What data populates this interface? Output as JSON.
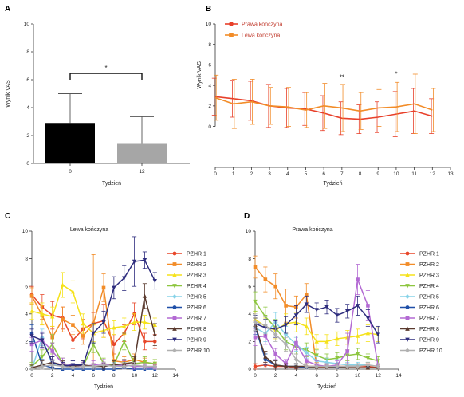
{
  "chart_data": [
    {
      "panel": "A",
      "type": "bar",
      "categories": [
        "0",
        "12"
      ],
      "values": [
        2.9,
        1.4
      ],
      "errors": [
        2.1,
        1.95
      ],
      "colors": [
        "#000000",
        "#a6a6a6"
      ],
      "ylabel": "Wynik VAS",
      "xlabel": "Tydzień",
      "ylim": [
        0,
        10
      ],
      "yticks": [
        "0",
        "2",
        "4",
        "6",
        "8",
        "10"
      ],
      "annotation": "*"
    },
    {
      "panel": "B",
      "type": "line",
      "ylabel": "Wynik VAS",
      "xlabel": "Tydzień",
      "xlim": [
        0,
        13
      ],
      "ylim": [
        -4,
        10
      ],
      "xticks": [
        "0",
        "1",
        "2",
        "3",
        "4",
        "5",
        "6",
        "7",
        "8",
        "9",
        "10",
        "11",
        "12",
        "13"
      ],
      "yticks": [
        "0",
        "2",
        "4",
        "6",
        "8",
        "10"
      ],
      "legend_position": "top-left",
      "annotations": [
        {
          "text": "**",
          "x": 7,
          "y": 4.6
        },
        {
          "text": "*",
          "x": 10,
          "y": 4.9
        }
      ],
      "x": [
        0,
        1,
        2,
        3,
        4,
        5,
        6,
        7,
        8,
        9,
        10,
        11,
        12
      ],
      "series": [
        {
          "name": "Prawa kończyna",
          "color": "#e8402a",
          "values": [
            2.9,
            2.7,
            2.5,
            2.0,
            1.8,
            1.7,
            1.3,
            0.8,
            0.7,
            0.9,
            1.2,
            1.5,
            1.0
          ],
          "errors": [
            1.8,
            1.8,
            1.9,
            2.1,
            1.9,
            1.6,
            1.7,
            1.6,
            1.4,
            1.5,
            2.2,
            2.2,
            1.7
          ]
        },
        {
          "name": "Lewa kończyna",
          "color": "#f28c28",
          "values": [
            2.8,
            2.2,
            2.4,
            2.0,
            1.9,
            1.6,
            2.0,
            1.8,
            1.5,
            1.8,
            1.9,
            2.2,
            1.6
          ],
          "errors": [
            2.2,
            2.4,
            2.2,
            1.8,
            1.9,
            1.7,
            2.2,
            2.3,
            1.8,
            1.8,
            2.4,
            2.9,
            2.1
          ]
        }
      ]
    },
    {
      "panel": "C",
      "type": "line",
      "title": "Lewa kończyna",
      "xlabel": "Tydzień",
      "xlim": [
        0,
        14
      ],
      "ylim": [
        0,
        10
      ],
      "xticks": [
        "0",
        "2",
        "4",
        "6",
        "8",
        "10",
        "12",
        "14"
      ],
      "yticks": [
        "0",
        "2",
        "4",
        "6",
        "8",
        "10"
      ],
      "legend_position": "right",
      "x": [
        0,
        1,
        2,
        3,
        4,
        5,
        6,
        7,
        8,
        9,
        10,
        11,
        12
      ],
      "series": [
        {
          "name": "PZHR 1",
          "color": "#e8472a",
          "values": [
            5.4,
            4.5,
            3.9,
            3.7,
            2.1,
            2.9,
            3.3,
            3.5,
            1.8,
            2.6,
            4.0,
            2.0,
            2.0
          ],
          "errors": [
            0.6,
            0.9,
            1.0,
            0.8,
            0.6,
            0.7,
            0.8,
            1.2,
            0.7,
            0.6,
            0.8,
            0.6,
            0.5
          ]
        },
        {
          "name": "PZHR 2",
          "color": "#f28c28",
          "values": [
            5.3,
            3.9,
            2.3,
            3.6,
            3.2,
            2.4,
            3.3,
            5.9,
            0.6,
            0.5,
            0.7,
            0.5,
            0.4
          ],
          "errors": [
            0.6,
            0.7,
            0.8,
            0.9,
            0.7,
            0.6,
            5.0,
            1.0,
            0.5,
            0.4,
            0.4,
            0.3,
            0.3
          ]
        },
        {
          "name": "PZHR 3",
          "color": "#f5e21a",
          "values": [
            4.2,
            4.0,
            3.8,
            6.1,
            5.6,
            3.3,
            2.6,
            2.8,
            3.0,
            3.1,
            3.4,
            3.4,
            3.2
          ],
          "errors": [
            0.6,
            0.8,
            0.7,
            0.9,
            0.8,
            0.7,
            0.6,
            0.5,
            0.5,
            0.6,
            0.6,
            0.5,
            0.5
          ]
        },
        {
          "name": "PZHR 4",
          "color": "#8dc63f",
          "values": [
            0.2,
            0.9,
            1.8,
            0.4,
            0.3,
            0.2,
            1.8,
            0.4,
            0.3,
            2.0,
            0.4,
            0.5,
            0.4
          ],
          "errors": [
            0.3,
            0.5,
            0.7,
            0.4,
            0.3,
            0.3,
            0.6,
            0.4,
            0.3,
            0.6,
            0.4,
            0.4,
            0.3
          ]
        },
        {
          "name": "PZHR 5",
          "color": "#87d3e8",
          "values": [
            0.0,
            2.3,
            0.3,
            0.3,
            0.3,
            0.2,
            0.2,
            0.2,
            0.3,
            0.3,
            0.2,
            0.2,
            0.1
          ],
          "errors": [
            0.2,
            0.6,
            0.3,
            0.3,
            0.3,
            0.2,
            0.2,
            0.2,
            0.2,
            0.2,
            0.2,
            0.2,
            0.1
          ]
        },
        {
          "name": "PZHR 6",
          "color": "#1f4fa8",
          "values": [
            2.6,
            0.3,
            0.1,
            0.0,
            0.0,
            0.0,
            0.0,
            0.0,
            0.0,
            0.1,
            0.0,
            0.0,
            0.0
          ],
          "errors": [
            0.6,
            0.4,
            0.2,
            0.1,
            0.1,
            0.1,
            0.1,
            0.1,
            0.1,
            0.1,
            0.1,
            0.1,
            0.1
          ]
        },
        {
          "name": "PZHR 7",
          "color": "#b36ad3",
          "values": [
            1.8,
            2.1,
            1.3,
            0.4,
            0.3,
            0.2,
            0.3,
            0.4,
            0.2,
            0.3,
            0.2,
            0.2,
            0.1
          ],
          "errors": [
            0.5,
            0.6,
            0.6,
            0.4,
            0.3,
            0.3,
            0.3,
            0.3,
            0.2,
            0.3,
            0.2,
            0.2,
            0.2
          ]
        },
        {
          "name": "PZHR 8",
          "color": "#5a3a2e",
          "values": [
            0.1,
            0.3,
            0.5,
            0.3,
            0.2,
            0.3,
            0.2,
            0.2,
            0.3,
            0.4,
            0.5,
            5.3,
            2.5
          ],
          "errors": [
            0.2,
            0.3,
            0.4,
            0.3,
            0.2,
            0.3,
            0.2,
            0.2,
            0.3,
            0.3,
            0.4,
            0.9,
            0.8
          ]
        },
        {
          "name": "PZHR 9",
          "color": "#2e2d7e",
          "values": [
            2.4,
            2.1,
            0.5,
            0.2,
            0.3,
            0.3,
            2.6,
            3.4,
            5.9,
            6.6,
            7.8,
            7.9,
            6.4
          ],
          "errors": [
            0.5,
            0.5,
            0.4,
            0.3,
            0.3,
            0.3,
            0.7,
            0.8,
            0.8,
            0.9,
            1.8,
            0.6,
            0.6
          ]
        },
        {
          "name": "PZHR 10",
          "color": "#b0b0b0",
          "values": [
            0.0,
            0.2,
            0.3,
            0.2,
            0.1,
            0.2,
            0.2,
            0.3,
            0.2,
            0.2,
            0.3,
            0.2,
            0.2
          ],
          "errors": [
            0.2,
            0.2,
            0.3,
            0.2,
            0.1,
            0.2,
            0.2,
            0.2,
            0.2,
            0.2,
            0.2,
            0.2,
            0.2
          ]
        }
      ]
    },
    {
      "panel": "D",
      "type": "line",
      "title": "Prawa kończyna",
      "xlabel": "Tydzień",
      "xlim": [
        0,
        14
      ],
      "ylim": [
        0,
        10
      ],
      "xticks": [
        "0",
        "2",
        "4",
        "6",
        "8",
        "10",
        "12",
        "14"
      ],
      "yticks": [
        "0",
        "2",
        "4",
        "6",
        "8",
        "10"
      ],
      "legend_position": "right",
      "x": [
        0,
        1,
        2,
        3,
        4,
        5,
        6,
        7,
        8,
        9,
        10,
        11,
        12
      ],
      "series": [
        {
          "name": "PZHR 1",
          "color": "#e8472a",
          "values": [
            0.2,
            0.3,
            0.2,
            0.2,
            0.1,
            0.2,
            0.2,
            0.1,
            0.2,
            0.2,
            0.2,
            0.2,
            0.1
          ],
          "errors": [
            0.2,
            0.2,
            0.2,
            0.2,
            0.1,
            0.2,
            0.2,
            0.1,
            0.2,
            0.2,
            0.2,
            0.2,
            0.1
          ]
        },
        {
          "name": "PZHR 2",
          "color": "#f28c28",
          "values": [
            7.4,
            6.5,
            6.0,
            4.6,
            4.5,
            5.4,
            0.2,
            0.2,
            0.1,
            0.1,
            0.1,
            0.1,
            0.1
          ],
          "errors": [
            0.8,
            0.9,
            0.9,
            1.2,
            0.8,
            0.8,
            0.3,
            0.2,
            0.2,
            0.2,
            0.2,
            0.2,
            0.2
          ]
        },
        {
          "name": "PZHR 3",
          "color": "#f5e21a",
          "values": [
            3.6,
            3.1,
            2.8,
            3.3,
            3.4,
            3.1,
            2.0,
            2.0,
            2.2,
            2.3,
            2.4,
            2.6,
            2.5
          ],
          "errors": [
            0.6,
            0.6,
            0.6,
            0.7,
            0.7,
            0.6,
            0.5,
            0.5,
            0.5,
            0.5,
            0.5,
            0.6,
            0.5
          ]
        },
        {
          "name": "PZHR 4",
          "color": "#8dc63f",
          "values": [
            4.9,
            3.8,
            3.0,
            2.0,
            1.6,
            1.4,
            1.0,
            0.7,
            0.8,
            1.0,
            1.1,
            0.8,
            0.6
          ],
          "errors": [
            0.7,
            0.7,
            0.6,
            0.6,
            0.5,
            0.5,
            0.4,
            0.4,
            0.4,
            0.4,
            0.4,
            0.3,
            0.3
          ]
        },
        {
          "name": "PZHR 5",
          "color": "#87d3e8",
          "values": [
            3.0,
            2.6,
            3.4,
            2.5,
            1.8,
            1.2,
            0.6,
            0.5,
            0.4,
            0.3,
            0.3,
            0.3,
            0.2
          ],
          "errors": [
            0.7,
            0.6,
            0.7,
            0.6,
            0.5,
            0.4,
            0.3,
            0.3,
            0.3,
            0.2,
            0.2,
            0.2,
            0.2
          ]
        },
        {
          "name": "PZHR 6",
          "color": "#1f4fa8",
          "values": [
            3.1,
            0.7,
            0.3,
            0.2,
            0.2,
            0.1,
            0.1,
            0.1,
            0.1,
            0.1,
            0.1,
            0.1,
            0.1
          ],
          "errors": [
            0.6,
            0.4,
            0.3,
            0.2,
            0.2,
            0.1,
            0.1,
            0.1,
            0.1,
            0.1,
            0.1,
            0.1,
            0.1
          ]
        },
        {
          "name": "PZHR 7",
          "color": "#b36ad3",
          "values": [
            2.3,
            2.4,
            1.1,
            0.4,
            1.9,
            0.6,
            0.3,
            0.2,
            0.3,
            1.3,
            6.5,
            4.6,
            0.2
          ],
          "errors": [
            0.6,
            0.6,
            0.4,
            0.3,
            0.5,
            0.4,
            0.3,
            0.2,
            0.3,
            1.3,
            1.1,
            1.1,
            0.2
          ]
        },
        {
          "name": "PZHR 8",
          "color": "#5a3a2e",
          "values": [
            3.2,
            0.9,
            0.3,
            0.2,
            0.2,
            0.2,
            0.1,
            0.1,
            0.2,
            0.1,
            0.1,
            0.1,
            0.1
          ],
          "errors": [
            0.5,
            0.4,
            0.3,
            0.2,
            0.2,
            0.2,
            0.1,
            0.1,
            0.2,
            0.1,
            0.1,
            0.1,
            0.1
          ]
        },
        {
          "name": "PZHR 9",
          "color": "#2e2d7e",
          "values": [
            3.3,
            3.0,
            2.9,
            3.2,
            3.9,
            4.7,
            4.3,
            4.5,
            3.9,
            4.2,
            4.6,
            3.7,
            2.5
          ],
          "errors": [
            0.6,
            0.6,
            0.6,
            0.6,
            0.7,
            0.6,
            0.5,
            0.5,
            0.5,
            0.5,
            0.7,
            0.6,
            0.6
          ]
        },
        {
          "name": "PZHR 10",
          "color": "#b0b0b0",
          "values": [
            3.4,
            3.2,
            2.5,
            1.8,
            0.7,
            0.2,
            0.2,
            0.2,
            0.2,
            0.2,
            0.2,
            0.3,
            0.2
          ],
          "errors": [
            0.6,
            0.6,
            0.5,
            0.5,
            0.4,
            0.2,
            0.2,
            0.2,
            0.2,
            0.2,
            0.2,
            0.2,
            0.2
          ]
        }
      ]
    }
  ]
}
